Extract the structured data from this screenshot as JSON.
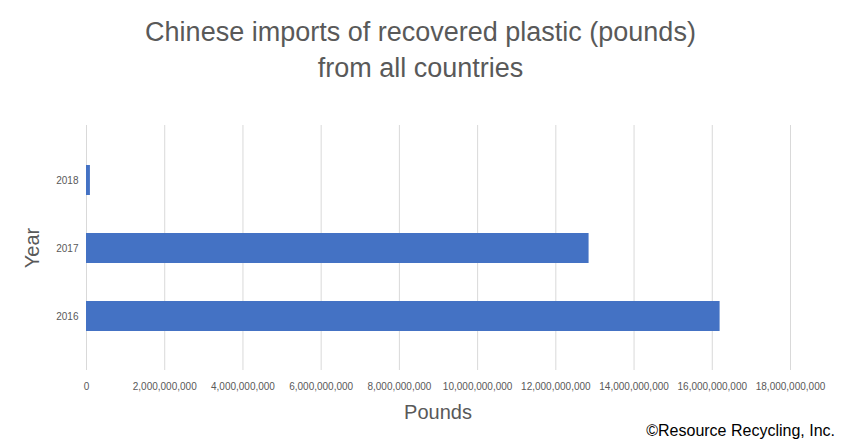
{
  "chart_data": {
    "type": "bar",
    "orientation": "horizontal",
    "title": "Chinese imports of recovered plastic (pounds)",
    "subtitle": "from all countries",
    "xlabel": "Pounds",
    "ylabel": "Year",
    "source": "©Resource Recycling, Inc.",
    "categories": [
      "2018",
      "2017",
      "2016"
    ],
    "values": [
      100000000,
      12850000000,
      16200000000
    ],
    "color": "#4472c4",
    "xlim": [
      0,
      18000000000
    ],
    "xticks": [
      0,
      {
        "value": 2000000000,
        "label": "2,000,000,000"
      },
      {
        "value": 4000000000,
        "label": "4,000,000,000"
      },
      {
        "value": 6000000000,
        "label": "6,000,000,000"
      },
      {
        "value": 8000000000,
        "label": "8,000,000,000"
      },
      {
        "value": 10000000000,
        "label": "10,000,000,000"
      },
      {
        "value": 12000000000,
        "label": "12,000,000,000"
      },
      {
        "value": 14000000000,
        "label": "14,000,000,000"
      },
      {
        "value": 16000000000,
        "label": "16,000,000,000"
      },
      {
        "value": 18000000000,
        "label": "18,000,000,000"
      }
    ],
    "grid": true
  }
}
